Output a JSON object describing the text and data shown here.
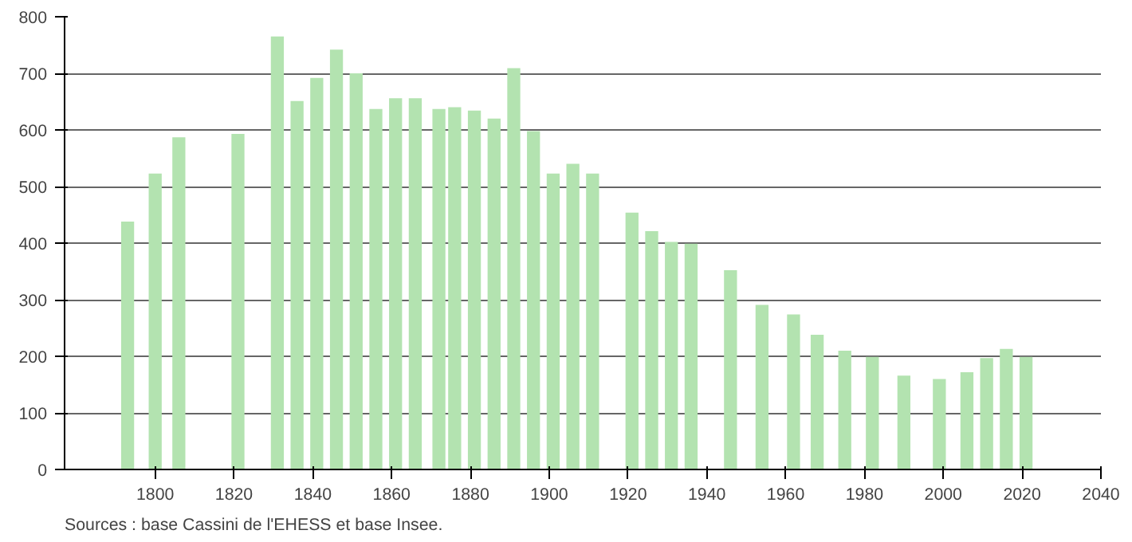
{
  "chart_data": {
    "type": "bar",
    "x": [
      1793,
      1800,
      1806,
      1821,
      1831,
      1836,
      1841,
      1846,
      1851,
      1856,
      1861,
      1866,
      1872,
      1876,
      1881,
      1886,
      1891,
      1896,
      1901,
      1906,
      1911,
      1921,
      1926,
      1931,
      1936,
      1946,
      1954,
      1962,
      1968,
      1975,
      1982,
      1990,
      1999,
      2006,
      2011,
      2016,
      2021
    ],
    "series": [
      {
        "color": "#b3e3b0",
        "values": [
          438,
          523,
          587,
          593,
          765,
          651,
          692,
          742,
          700,
          637,
          656,
          656,
          637,
          640,
          634,
          620,
          709,
          598,
          523,
          540,
          523,
          454,
          421,
          402,
          399,
          352,
          291,
          274,
          238,
          210,
          199,
          166,
          160,
          172,
          197,
          213,
          199
        ]
      }
    ],
    "xlim": [
      1777,
      2040
    ],
    "xticks": [
      1800,
      1820,
      1840,
      1860,
      1880,
      1900,
      1920,
      1940,
      1960,
      1980,
      2000,
      2020,
      2040
    ],
    "ylim": [
      0,
      800
    ],
    "yticks": [
      0,
      100,
      200,
      300,
      400,
      500,
      600,
      700,
      800
    ],
    "grid": "y",
    "annotations": [
      "Sources : base Cassini de l'EHESS et base Insee."
    ]
  }
}
